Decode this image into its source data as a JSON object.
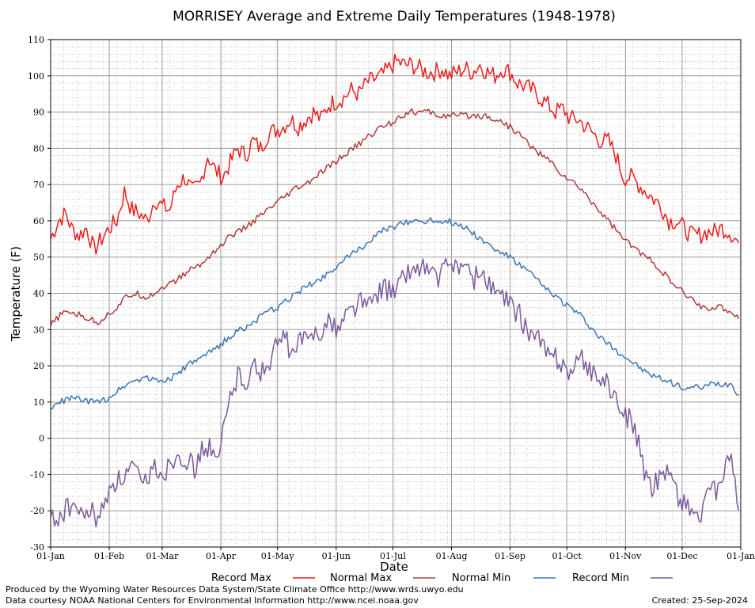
{
  "chart_data": {
    "type": "line",
    "title": "MORRISEY Average and Extreme Daily Temperatures (1948-1978)",
    "xlabel": "Date",
    "ylabel": "Temperature (F)",
    "ylim": [
      -30,
      110
    ],
    "yticks": [
      110,
      100,
      90,
      80,
      70,
      60,
      50,
      40,
      30,
      20,
      10,
      0,
      -10,
      -20,
      -30
    ],
    "xlim": [
      1,
      366
    ],
    "x_tick_labels": [
      "01-Jan",
      "01-Feb",
      "01-Mar",
      "01-Apr",
      "01-May",
      "01-Jun",
      "01-Jul",
      "01-Aug",
      "01-Sep",
      "01-Oct",
      "01-Nov",
      "01-Dec",
      "01-Jan"
    ],
    "x_tick_days": [
      1,
      32,
      60,
      91,
      121,
      152,
      182,
      213,
      244,
      274,
      305,
      335,
      366
    ],
    "grid": true,
    "legend_position": "bottom",
    "series": [
      {
        "name": "Record Max",
        "color": "#ee1c1c",
        "day": [
          1,
          5,
          9,
          12,
          16,
          20,
          24,
          28,
          32,
          36,
          40,
          44,
          48,
          52,
          56,
          60,
          64,
          68,
          72,
          76,
          80,
          84,
          88,
          92,
          96,
          100,
          104,
          108,
          112,
          116,
          120,
          124,
          128,
          132,
          136,
          140,
          144,
          148,
          152,
          156,
          160,
          164,
          168,
          172,
          176,
          180,
          184,
          188,
          192,
          196,
          200,
          204,
          208,
          212,
          216,
          220,
          224,
          228,
          232,
          236,
          240,
          244,
          248,
          252,
          256,
          260,
          264,
          268,
          272,
          276,
          280,
          284,
          288,
          292,
          296,
          300,
          304,
          308,
          312,
          316,
          320,
          324,
          328,
          332,
          336,
          340,
          344,
          348,
          352,
          356,
          360,
          365
        ],
        "values": [
          55,
          60,
          62,
          58,
          56,
          58,
          52,
          55,
          58,
          60,
          68,
          63,
          62,
          60,
          66,
          64,
          63,
          70,
          72,
          68,
          70,
          78,
          74,
          72,
          76,
          80,
          78,
          82,
          80,
          84,
          85,
          86,
          88,
          86,
          88,
          90,
          88,
          92,
          93,
          94,
          96,
          95,
          98,
          99,
          100,
          102,
          104,
          103,
          103,
          102,
          101,
          101,
          102,
          100,
          101,
          102,
          101,
          103,
          101,
          100,
          102,
          101,
          98,
          97,
          96,
          94,
          92,
          90,
          91,
          88,
          88,
          86,
          84,
          82,
          82,
          78,
          72,
          72,
          70,
          68,
          66,
          64,
          60,
          60,
          58,
          56,
          56,
          57,
          57,
          58,
          57,
          54
        ]
      },
      {
        "name": "Normal Max",
        "color": "#b03b3b",
        "day": [
          1,
          6,
          11,
          16,
          21,
          26,
          31,
          36,
          41,
          46,
          51,
          56,
          61,
          66,
          71,
          76,
          81,
          86,
          91,
          96,
          101,
          106,
          111,
          116,
          121,
          126,
          131,
          136,
          141,
          146,
          151,
          156,
          161,
          166,
          171,
          176,
          181,
          186,
          191,
          196,
          201,
          206,
          211,
          216,
          221,
          226,
          231,
          236,
          241,
          246,
          251,
          256,
          261,
          266,
          271,
          276,
          281,
          286,
          291,
          296,
          301,
          306,
          311,
          316,
          321,
          326,
          331,
          336,
          341,
          346,
          351,
          356,
          361,
          365
        ],
        "values": [
          31,
          34,
          35,
          34,
          33,
          32,
          34,
          36,
          39,
          40,
          39,
          40,
          42,
          43,
          45,
          47,
          48,
          51,
          53,
          56,
          57,
          59,
          61,
          63,
          65,
          67,
          69,
          70,
          72,
          74,
          76,
          78,
          80,
          82,
          84,
          86,
          87,
          89,
          90,
          90,
          90,
          89,
          89,
          89,
          89,
          89,
          89,
          88,
          87,
          85,
          83,
          80,
          78,
          76,
          73,
          71,
          69,
          66,
          63,
          60,
          57,
          54,
          52,
          50,
          48,
          45,
          42,
          40,
          38,
          36,
          36,
          36,
          35,
          33
        ]
      },
      {
        "name": "Normal Min",
        "color": "#3c76b5",
        "day": [
          1,
          6,
          11,
          16,
          21,
          26,
          31,
          36,
          41,
          46,
          51,
          56,
          61,
          66,
          71,
          76,
          81,
          86,
          91,
          96,
          101,
          106,
          111,
          116,
          121,
          126,
          131,
          136,
          141,
          146,
          151,
          156,
          161,
          166,
          171,
          176,
          181,
          186,
          191,
          196,
          201,
          206,
          211,
          216,
          221,
          226,
          231,
          236,
          241,
          246,
          251,
          256,
          261,
          266,
          271,
          276,
          281,
          286,
          291,
          296,
          301,
          306,
          311,
          316,
          321,
          326,
          331,
          336,
          341,
          346,
          351,
          356,
          361,
          365
        ],
        "values": [
          8,
          10,
          11,
          11,
          10,
          10,
          11,
          13,
          15,
          16,
          17,
          16,
          16,
          17,
          19,
          21,
          22,
          24,
          26,
          28,
          30,
          31,
          33,
          35,
          36,
          38,
          40,
          42,
          43,
          45,
          47,
          49,
          51,
          53,
          55,
          57,
          58,
          59,
          60,
          60,
          60,
          60,
          60,
          59,
          58,
          56,
          54,
          52,
          51,
          49,
          47,
          45,
          42,
          40,
          38,
          36,
          34,
          31,
          28,
          26,
          24,
          22,
          20,
          18,
          17,
          16,
          15,
          14,
          14,
          14,
          15,
          15,
          15,
          12
        ]
      },
      {
        "name": "Record Min",
        "color": "#7b5a9c",
        "day": [
          1,
          5,
          9,
          13,
          17,
          21,
          25,
          29,
          33,
          37,
          41,
          45,
          49,
          53,
          57,
          61,
          65,
          69,
          73,
          77,
          81,
          85,
          89,
          93,
          97,
          101,
          105,
          109,
          113,
          117,
          121,
          125,
          129,
          133,
          137,
          141,
          145,
          149,
          153,
          157,
          161,
          165,
          169,
          173,
          177,
          181,
          185,
          189,
          193,
          197,
          201,
          205,
          209,
          213,
          217,
          221,
          225,
          229,
          233,
          237,
          241,
          245,
          249,
          253,
          257,
          261,
          265,
          269,
          273,
          277,
          281,
          285,
          289,
          293,
          297,
          301,
          305,
          309,
          313,
          317,
          321,
          325,
          329,
          333,
          337,
          341,
          345,
          349,
          353,
          357,
          361,
          365
        ],
        "values": [
          -22,
          -22,
          -20,
          -18,
          -22,
          -20,
          -22,
          -20,
          -12,
          -12,
          -10,
          -8,
          -14,
          -10,
          -8,
          -10,
          -6,
          -4,
          -6,
          -8,
          -4,
          -2,
          -8,
          4,
          14,
          18,
          16,
          20,
          18,
          22,
          26,
          28,
          22,
          28,
          26,
          30,
          30,
          32,
          30,
          34,
          36,
          38,
          36,
          40,
          42,
          40,
          42,
          46,
          46,
          48,
          46,
          44,
          46,
          48,
          48,
          46,
          44,
          46,
          42,
          40,
          38,
          36,
          34,
          30,
          28,
          26,
          22,
          22,
          20,
          18,
          22,
          20,
          18,
          16,
          14,
          8,
          6,
          4,
          -4,
          -14,
          -12,
          -8,
          -10,
          -16,
          -18,
          -20,
          -22,
          -16,
          -14,
          -10,
          -6,
          -20
        ]
      }
    ]
  },
  "legend": {
    "record_max": "Record Max",
    "normal_max": "Normal Max",
    "normal_min": "Normal Min",
    "record_min": "Record Min"
  },
  "footer": {
    "line1": "Produced by the Wyoming Water Resources Data System/State Climate Office http://www.wrds.uwyo.edu",
    "line2": "Data courtesy NOAA National Centers for Environmental Information http://www.ncei.noaa.gov",
    "created": "Created:  25-Sep-2024"
  }
}
